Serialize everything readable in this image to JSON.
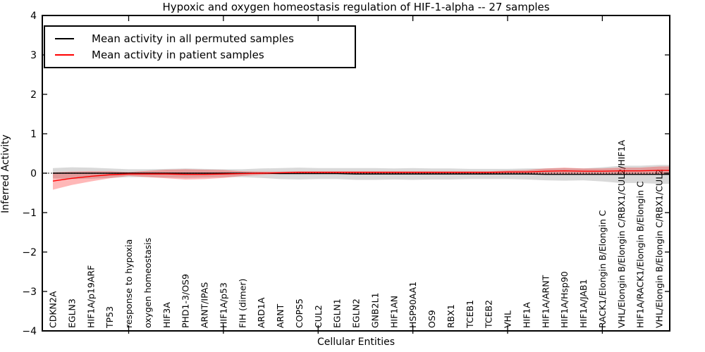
{
  "figure": {
    "kind": "matplotlib-line-plot",
    "background": "#ffffff",
    "frame_color": "#000000"
  },
  "chart_data": {
    "type": "line",
    "title": "Hypoxic and oxygen homeostasis regulation of HIF-1-alpha -- 27 samples",
    "xlabel": "Cellular Entities",
    "ylabel": "Inferred Activity",
    "ylim": [
      -4,
      4
    ],
    "yticks": [
      4,
      3,
      2,
      1,
      0,
      -1,
      -2,
      -3,
      -4
    ],
    "grid": false,
    "legend_position": "upper left",
    "x_major_tick_indices": [
      4,
      9,
      14,
      19,
      24,
      29
    ],
    "zero_line": {
      "value": 0,
      "style": "dotted",
      "color": "#000000"
    },
    "categories": [
      "CDKN2A",
      "EGLN3",
      "HIF1A/p19ARF",
      "TP53",
      "response to hypoxia",
      "oxygen homeostasis",
      "HIF3A",
      "PHD1-3/OS9",
      "ARNT/IPAS",
      "HIF1A/p53",
      "FIH (dimer)",
      "ARD1A",
      "ARNT",
      "COPS5",
      "CUL2",
      "EGLN1",
      "EGLN2",
      "GNB2L1",
      "HIF1AN",
      "HSP90AA1",
      "OS9",
      "RBX1",
      "TCEB1",
      "TCEB2",
      "VHL",
      "HIF1A",
      "HIF1A/ARNT",
      "HIF1A/Hsp90",
      "HIF1A/JAB1",
      "RACK1/Elongin B/Elongin C",
      "VHL/Elongin B/Elongin C/RBX1/CUL2/HIF1A",
      "HIF1A/RACK1/Elongin B/Elongin C",
      "VHL/Elongin B/Elongin C/RBX1/CUL2"
    ],
    "series": [
      {
        "name": "Mean activity in all permuted samples",
        "color": "#000000",
        "band_color": "rgba(0,0,0,0.15)",
        "values": [
          0,
          0,
          0,
          0,
          0,
          0,
          0,
          0,
          0,
          0,
          0,
          0,
          -0.01,
          -0.01,
          -0.01,
          -0.01,
          -0.02,
          -0.02,
          -0.02,
          -0.02,
          -0.02,
          -0.02,
          -0.02,
          -0.02,
          -0.02,
          -0.02,
          -0.03,
          -0.03,
          -0.03,
          -0.03,
          -0.03,
          -0.03,
          -0.03
        ],
        "band": [
          0.13,
          0.15,
          0.14,
          0.12,
          0.1,
          0.1,
          0.11,
          0.12,
          0.11,
          0.1,
          0.1,
          0.12,
          0.14,
          0.15,
          0.14,
          0.14,
          0.15,
          0.15,
          0.14,
          0.15,
          0.14,
          0.14,
          0.13,
          0.13,
          0.13,
          0.14,
          0.15,
          0.16,
          0.15,
          0.18,
          0.22,
          0.22,
          0.24
        ]
      },
      {
        "name": "Mean activity in patient samples",
        "color": "#ff0000",
        "band_color": "rgba(255,0,0,0.28)",
        "values": [
          -0.2,
          -0.13,
          -0.08,
          -0.04,
          -0.02,
          -0.02,
          -0.02,
          -0.03,
          -0.03,
          -0.02,
          -0.01,
          0,
          0.01,
          0.02,
          0.02,
          0.02,
          0.02,
          0.02,
          0.02,
          0.02,
          0.02,
          0.02,
          0.02,
          0.02,
          0.03,
          0.03,
          0.05,
          0.06,
          0.05,
          0.05,
          0.06,
          0.06,
          0.07
        ],
        "band": [
          0.22,
          0.17,
          0.13,
          0.09,
          0.05,
          0.08,
          0.11,
          0.13,
          0.12,
          0.1,
          0.06,
          0.04,
          0.03,
          0.03,
          0.03,
          0.03,
          0.03,
          0.03,
          0.03,
          0.03,
          0.03,
          0.03,
          0.03,
          0.03,
          0.04,
          0.05,
          0.07,
          0.08,
          0.07,
          0.07,
          0.08,
          0.08,
          0.1
        ]
      }
    ]
  }
}
